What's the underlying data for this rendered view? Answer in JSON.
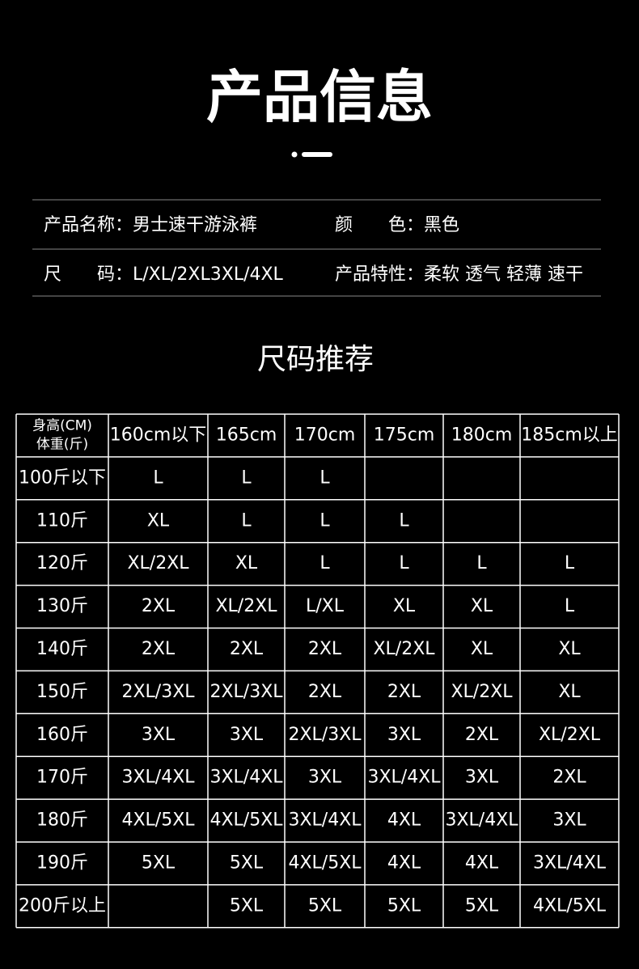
{
  "header": {
    "title": "产品信息"
  },
  "info": [
    [
      {
        "label": "产品名称：",
        "value": "男士速干游泳裤"
      },
      {
        "label": "颜　　色：",
        "value": "黑色"
      }
    ],
    [
      {
        "label": "尺　　码：",
        "value": "L/XL/2XL3XL/4XL"
      },
      {
        "label": "产品特性：",
        "value": "柔软 透气 轻薄 速干"
      }
    ]
  ],
  "section": {
    "title": "尺码推荐"
  },
  "table": {
    "corner": [
      "身高(CM)",
      "体重(斤)"
    ],
    "columns": [
      "160cm以下",
      "165cm",
      "170cm",
      "175cm",
      "180cm",
      "185cm以上"
    ],
    "rows": [
      {
        "label": "100斤以下",
        "cells": [
          "L",
          "L",
          "L",
          null,
          null,
          null
        ]
      },
      {
        "label": "110斤",
        "cells": [
          "XL",
          "L",
          "L",
          "L",
          null,
          null
        ]
      },
      {
        "label": "120斤",
        "cells": [
          "XL/2XL",
          "XL",
          "L",
          "L",
          "L",
          "L"
        ]
      },
      {
        "label": "130斤",
        "cells": [
          "2XL",
          "XL/2XL",
          "L/XL",
          "XL",
          "XL",
          "L"
        ]
      },
      {
        "label": "140斤",
        "cells": [
          "2XL",
          "2XL",
          "2XL",
          "XL/2XL",
          "XL",
          "XL"
        ]
      },
      {
        "label": "150斤",
        "cells": [
          "2XL/3XL",
          "2XL/3XL",
          "2XL",
          "2XL",
          "XL/2XL",
          "XL"
        ]
      },
      {
        "label": "160斤",
        "cells": [
          "3XL",
          "3XL",
          "2XL/3XL",
          "3XL",
          "2XL",
          "XL/2XL"
        ]
      },
      {
        "label": "170斤",
        "cells": [
          "3XL/4XL",
          "3XL/4XL",
          "3XL",
          "3XL/4XL",
          "3XL",
          "2XL"
        ]
      },
      {
        "label": "180斤",
        "cells": [
          "4XL/5XL",
          "4XL/5XL",
          "3XL/4XL",
          "4XL",
          "3XL/4XL",
          "3XL"
        ]
      },
      {
        "label": "190斤",
        "cells": [
          "5XL",
          "5XL",
          "4XL/5XL",
          "4XL",
          "4XL",
          "3XL/4XL"
        ]
      },
      {
        "label": "200斤以上",
        "cells": [
          null,
          "5XL",
          "5XL",
          "5XL",
          "5XL",
          "4XL/5XL"
        ]
      }
    ]
  }
}
